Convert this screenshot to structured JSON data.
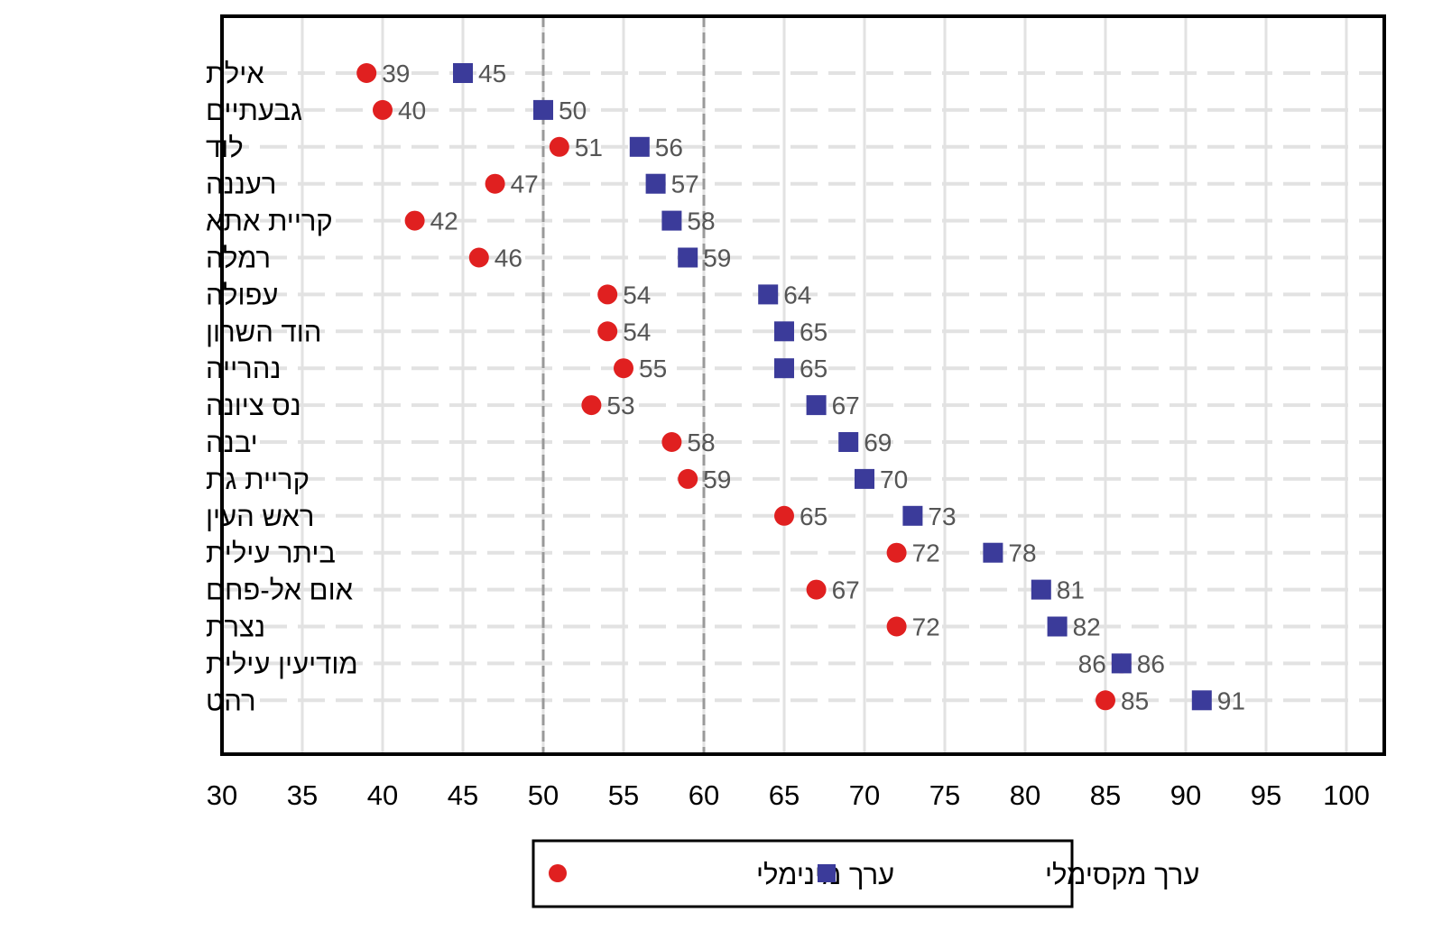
{
  "chart_data": {
    "type": "scatter",
    "title": "",
    "xlabel": "",
    "ylabel": "",
    "xlim": [
      30,
      102.4
    ],
    "xticks": [
      30,
      35,
      40,
      45,
      50,
      55,
      60,
      65,
      70,
      75,
      80,
      85,
      90,
      95,
      100
    ],
    "reference_lines": [
      50,
      60
    ],
    "grid": true,
    "legend_position": "bottom-center",
    "categories": [
      "אילת",
      "גבעתיים",
      "לוד",
      "רעננה",
      "קריית אתא",
      "רמלה",
      "עפולה",
      "הוד השרון",
      "נהרייה",
      "נס ציונה",
      "יבנה",
      "קריית גת",
      "ראש העין",
      "ביתר עילית",
      "אום אל-פחם",
      "נצרת",
      "מודיעין עילית",
      "רהט"
    ],
    "series": [
      {
        "name": "ערך מינימלי",
        "marker": "circle",
        "color": "#e02020",
        "values": [
          39,
          40,
          51,
          47,
          42,
          46,
          54,
          54,
          55,
          53,
          58,
          59,
          65,
          72,
          67,
          72,
          86,
          85
        ]
      },
      {
        "name": "ערך מקסימלי",
        "marker": "square",
        "color": "#3b3b9a",
        "values": [
          45,
          50,
          56,
          57,
          58,
          59,
          64,
          65,
          65,
          67,
          69,
          70,
          73,
          78,
          81,
          82,
          86,
          91
        ]
      }
    ]
  }
}
